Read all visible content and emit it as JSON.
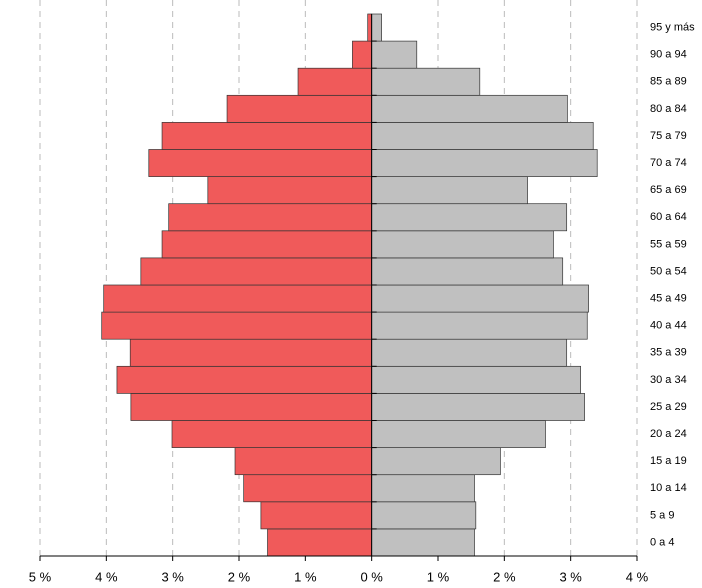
{
  "chart_data": {
    "type": "pyramid",
    "categories": [
      "0 a 4",
      "5 a 9",
      "10 a 14",
      "15 a 19",
      "20 a 24",
      "25 a 29",
      "30 a 34",
      "35 a 39",
      "40 a 44",
      "45 a 49",
      "50 a 54",
      "55 a 59",
      "60 a 64",
      "65 a 69",
      "70 a 74",
      "75 a 79",
      "80 a 84",
      "85 a 89",
      "90 a 94",
      "95 y más"
    ],
    "series": [
      {
        "side": "left",
        "color": "#f05a5a",
        "values": [
          1.57,
          1.67,
          1.93,
          2.06,
          3.01,
          3.63,
          3.84,
          3.64,
          4.07,
          4.04,
          3.48,
          3.16,
          3.06,
          2.47,
          3.36,
          3.16,
          2.18,
          1.11,
          0.29,
          0.06
        ]
      },
      {
        "side": "right",
        "color": "#c0c0c0",
        "values": [
          1.55,
          1.57,
          1.55,
          1.94,
          2.62,
          3.21,
          3.15,
          2.94,
          3.25,
          3.27,
          2.88,
          2.74,
          2.94,
          2.35,
          3.4,
          3.34,
          2.95,
          1.63,
          0.68,
          0.15
        ]
      }
    ],
    "xlim": [
      -5,
      4
    ],
    "xticks": [
      {
        "value": -5,
        "label": "5 %"
      },
      {
        "value": -4,
        "label": "4 %"
      },
      {
        "value": -3,
        "label": "3 %"
      },
      {
        "value": -2,
        "label": "2 %"
      },
      {
        "value": -1,
        "label": "1 %"
      },
      {
        "value": 0,
        "label": "0 %"
      },
      {
        "value": 1,
        "label": "1 %"
      },
      {
        "value": 2,
        "label": "2 %"
      },
      {
        "value": 3,
        "label": "3 %"
      },
      {
        "value": 4,
        "label": "4 %"
      }
    ],
    "grid": true
  }
}
